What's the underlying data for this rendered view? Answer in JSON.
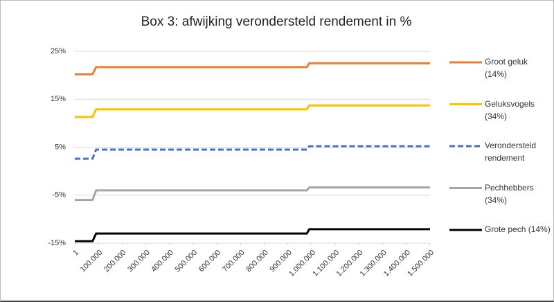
{
  "chart_data": {
    "type": "line",
    "title": "Box 3: afwijking verondersteld rendement in %",
    "x": [
      1,
      75000,
      90000,
      980000,
      990000,
      1500000
    ],
    "xlim": [
      1,
      1500000
    ],
    "xticks": [
      1,
      {
        "value": 100000,
        "label": "100.000"
      },
      {
        "value": 200000,
        "label": "200.000"
      },
      {
        "value": 300000,
        "label": "300.000"
      },
      {
        "value": 400000,
        "label": "400.000"
      },
      {
        "value": 500000,
        "label": "500.000"
      },
      {
        "value": 600000,
        "label": "600.000"
      },
      {
        "value": 700000,
        "label": "700.000"
      },
      {
        "value": 800000,
        "label": "800.000"
      },
      {
        "value": 900000,
        "label": "900.000"
      },
      {
        "value": 1000000,
        "label": "1.000.000"
      },
      {
        "value": 1100000,
        "label": "1.100.000"
      },
      {
        "value": 1200000,
        "label": "1.200.000"
      },
      {
        "value": 1300000,
        "label": "1.300.000"
      },
      {
        "value": 1400000,
        "label": "1.400.000"
      },
      {
        "value": 1500000,
        "label": "1.500.000"
      }
    ],
    "ylim": [
      -15,
      25
    ],
    "yticks": [
      {
        "value": -15,
        "label": "-15%"
      },
      {
        "value": -5,
        "label": "-5%"
      },
      {
        "value": 5,
        "label": "5%"
      },
      {
        "value": 15,
        "label": "15%"
      },
      {
        "value": 25,
        "label": "25%"
      }
    ],
    "grid": true,
    "series": [
      {
        "name": "Groot geluk (14%)",
        "color": "#ed7d31",
        "dashed": false,
        "values": [
          20.2,
          20.2,
          21.7,
          21.7,
          22.5,
          22.5
        ]
      },
      {
        "name": "Geluksvogels (34%)",
        "color": "#ffc000",
        "dashed": false,
        "values": [
          11.3,
          11.3,
          12.9,
          12.9,
          13.7,
          13.7
        ]
      },
      {
        "name": "Verondersteld rendement",
        "color": "#4472c4",
        "dashed": true,
        "values": [
          2.6,
          2.6,
          4.5,
          4.5,
          5.2,
          5.2
        ]
      },
      {
        "name": "Pechhebbers (34%)",
        "color": "#a5a5a5",
        "dashed": false,
        "values": [
          -6.0,
          -6.0,
          -4.0,
          -4.0,
          -3.4,
          -3.4
        ]
      },
      {
        "name": "Grote pech (14%)",
        "color": "#000000",
        "dashed": false,
        "values": [
          -14.6,
          -14.6,
          -13.0,
          -13.0,
          -12.1,
          -12.1
        ]
      }
    ]
  }
}
